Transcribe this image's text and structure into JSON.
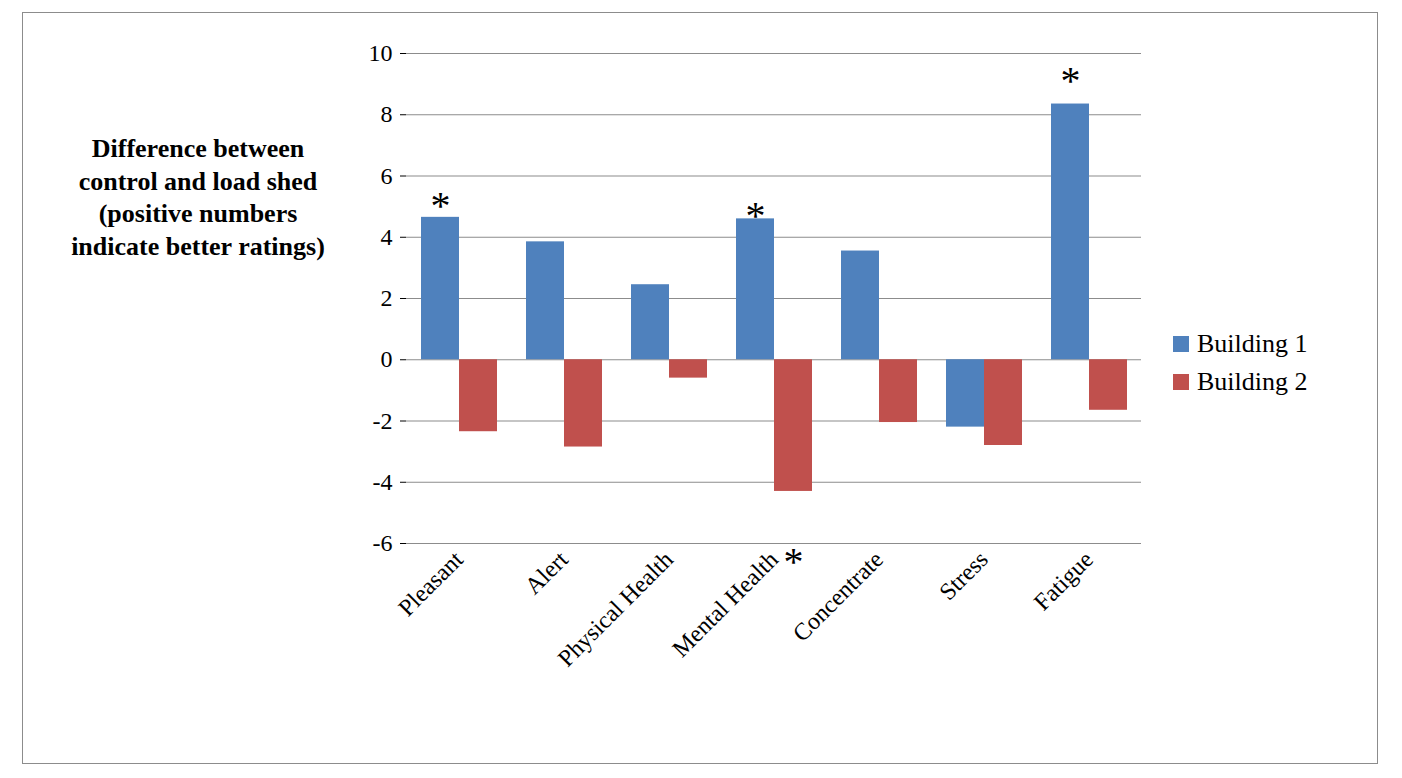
{
  "chart_data": {
    "type": "bar",
    "y_label": "Difference between control and load shed (positive numbers indicate better ratings)",
    "categories": [
      "Pleasant",
      "Alert",
      "Physical Health",
      "Mental Health",
      "Concentrate",
      "Stress",
      "Fatigue"
    ],
    "series": [
      {
        "name": "Building 1",
        "color": "#4f81bd",
        "values": [
          4.65,
          3.85,
          2.45,
          4.6,
          3.55,
          -2.2,
          8.35
        ]
      },
      {
        "name": "Building 2",
        "color": "#c0504d",
        "values": [
          -2.35,
          -2.85,
          -0.6,
          -4.3,
          -2.05,
          -2.8,
          -1.65
        ]
      }
    ],
    "ylim": [
      -6,
      10
    ],
    "yticks": [
      -6,
      -4,
      -2,
      0,
      2,
      4,
      6,
      8,
      10
    ],
    "grid": true,
    "legend": "right",
    "annotations": [
      {
        "text": "*",
        "category": "Pleasant",
        "series": "Building 1",
        "y": 5.0
      },
      {
        "text": "*",
        "category": "Mental Health",
        "series": "Building 1",
        "y": 4.7
      },
      {
        "text": "*",
        "category": "Mental Health",
        "series": "Building 2",
        "y": -6.6
      },
      {
        "text": "*",
        "category": "Fatigue",
        "series": "Building 1",
        "y": 9.1
      }
    ]
  }
}
